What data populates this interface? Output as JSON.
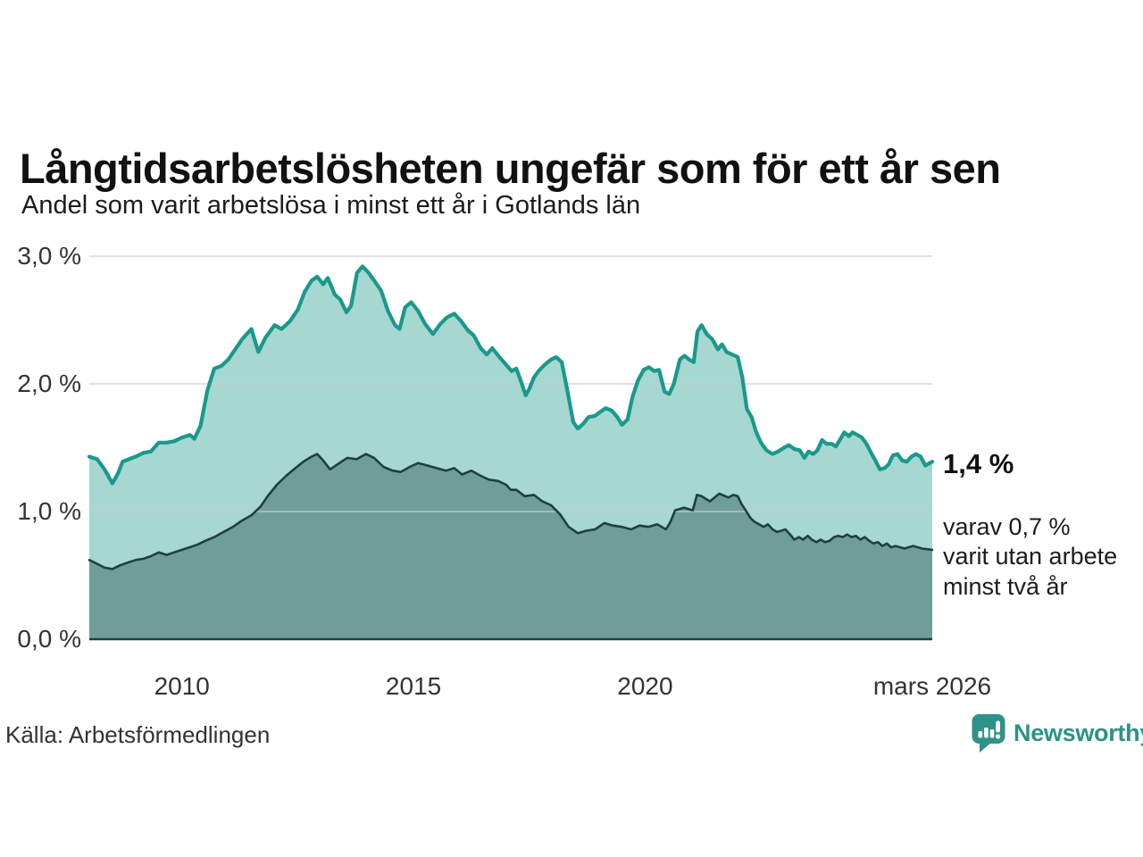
{
  "chart_data": {
    "type": "area",
    "title": "Långtidsarbetslösheten ungefär som för ett år sen",
    "subtitle": "Andel som varit arbetslösa i minst ett år i Gotlands län",
    "source": "Källa: Arbetsförmedlingen",
    "brand": "Newsworthy",
    "xlim": [
      2008.0,
      2026.2
    ],
    "ylim": [
      0,
      3.0
    ],
    "grid": true,
    "legend": "none",
    "y_ticks": [
      {
        "value": 0,
        "label": "0,0 %"
      },
      {
        "value": 1,
        "label": "1,0 %"
      },
      {
        "value": 2,
        "label": "2,0 %"
      },
      {
        "value": 3,
        "label": "3,0 %"
      }
    ],
    "x_ticks": [
      {
        "x": 2010,
        "label": "2010"
      },
      {
        "x": 2015,
        "label": "2015"
      },
      {
        "x": 2020,
        "label": "2020"
      },
      {
        "x": 2026.2,
        "label": "mars 2026"
      }
    ],
    "colors": {
      "line_1yr": "#19998c",
      "fill_1yr": "#a6d7d0",
      "line_2yr": "#1e403d",
      "fill_2yr": "#6f9e99",
      "grid": "#cccccc",
      "axis": "#1e403d",
      "tick_text": "#333333",
      "brand_teal": "#2f9289"
    },
    "annotations": {
      "latest_value": "1,4 %",
      "detail": "varav 0,7 %\nvarit utan arbete\nminst två år"
    },
    "series": [
      {
        "name": "Andel arbetslösa minst ett år",
        "points": [
          [
            2008.0,
            1.43
          ],
          [
            2008.17,
            1.41
          ],
          [
            2008.33,
            1.33
          ],
          [
            2008.5,
            1.22
          ],
          [
            2008.62,
            1.3
          ],
          [
            2008.72,
            1.39
          ],
          [
            2008.85,
            1.41
          ],
          [
            2009.0,
            1.43
          ],
          [
            2009.17,
            1.46
          ],
          [
            2009.33,
            1.47
          ],
          [
            2009.5,
            1.54
          ],
          [
            2009.67,
            1.54
          ],
          [
            2009.83,
            1.55
          ],
          [
            2010.0,
            1.58
          ],
          [
            2010.17,
            1.6
          ],
          [
            2010.27,
            1.57
          ],
          [
            2010.4,
            1.67
          ],
          [
            2010.55,
            1.95
          ],
          [
            2010.7,
            2.12
          ],
          [
            2010.85,
            2.14
          ],
          [
            2011.0,
            2.19
          ],
          [
            2011.15,
            2.27
          ],
          [
            2011.3,
            2.35
          ],
          [
            2011.5,
            2.43
          ],
          [
            2011.65,
            2.25
          ],
          [
            2011.8,
            2.36
          ],
          [
            2012.0,
            2.46
          ],
          [
            2012.15,
            2.43
          ],
          [
            2012.33,
            2.49
          ],
          [
            2012.5,
            2.58
          ],
          [
            2012.65,
            2.72
          ],
          [
            2012.8,
            2.81
          ],
          [
            2012.92,
            2.84
          ],
          [
            2013.05,
            2.78
          ],
          [
            2013.15,
            2.83
          ],
          [
            2013.3,
            2.7
          ],
          [
            2013.42,
            2.66
          ],
          [
            2013.55,
            2.56
          ],
          [
            2013.65,
            2.61
          ],
          [
            2013.78,
            2.87
          ],
          [
            2013.9,
            2.92
          ],
          [
            2014.03,
            2.87
          ],
          [
            2014.15,
            2.81
          ],
          [
            2014.3,
            2.73
          ],
          [
            2014.45,
            2.57
          ],
          [
            2014.6,
            2.46
          ],
          [
            2014.7,
            2.43
          ],
          [
            2014.82,
            2.6
          ],
          [
            2014.95,
            2.64
          ],
          [
            2015.1,
            2.57
          ],
          [
            2015.25,
            2.47
          ],
          [
            2015.42,
            2.39
          ],
          [
            2015.58,
            2.47
          ],
          [
            2015.72,
            2.52
          ],
          [
            2015.88,
            2.55
          ],
          [
            2016.03,
            2.49
          ],
          [
            2016.17,
            2.42
          ],
          [
            2016.3,
            2.38
          ],
          [
            2016.45,
            2.28
          ],
          [
            2016.58,
            2.23
          ],
          [
            2016.7,
            2.28
          ],
          [
            2016.83,
            2.22
          ],
          [
            2017.0,
            2.15
          ],
          [
            2017.12,
            2.1
          ],
          [
            2017.22,
            2.12
          ],
          [
            2017.32,
            2.02
          ],
          [
            2017.42,
            1.91
          ],
          [
            2017.5,
            1.96
          ],
          [
            2017.6,
            2.05
          ],
          [
            2017.7,
            2.1
          ],
          [
            2017.83,
            2.15
          ],
          [
            2017.97,
            2.19
          ],
          [
            2018.08,
            2.21
          ],
          [
            2018.2,
            2.17
          ],
          [
            2018.32,
            1.95
          ],
          [
            2018.45,
            1.7
          ],
          [
            2018.55,
            1.65
          ],
          [
            2018.67,
            1.69
          ],
          [
            2018.78,
            1.74
          ],
          [
            2018.92,
            1.75
          ],
          [
            2019.03,
            1.78
          ],
          [
            2019.15,
            1.81
          ],
          [
            2019.28,
            1.79
          ],
          [
            2019.4,
            1.74
          ],
          [
            2019.5,
            1.68
          ],
          [
            2019.62,
            1.72
          ],
          [
            2019.73,
            1.9
          ],
          [
            2019.85,
            2.03
          ],
          [
            2019.97,
            2.11
          ],
          [
            2020.08,
            2.13
          ],
          [
            2020.2,
            2.1
          ],
          [
            2020.3,
            2.11
          ],
          [
            2020.42,
            1.94
          ],
          [
            2020.52,
            1.92
          ],
          [
            2020.62,
            2.0
          ],
          [
            2020.75,
            2.19
          ],
          [
            2020.85,
            2.22
          ],
          [
            2020.95,
            2.19
          ],
          [
            2021.05,
            2.17
          ],
          [
            2021.13,
            2.41
          ],
          [
            2021.22,
            2.46
          ],
          [
            2021.33,
            2.39
          ],
          [
            2021.45,
            2.35
          ],
          [
            2021.57,
            2.27
          ],
          [
            2021.66,
            2.31
          ],
          [
            2021.76,
            2.25
          ],
          [
            2021.88,
            2.23
          ],
          [
            2022.0,
            2.21
          ],
          [
            2022.1,
            2.05
          ],
          [
            2022.2,
            1.8
          ],
          [
            2022.3,
            1.74
          ],
          [
            2022.4,
            1.62
          ],
          [
            2022.5,
            1.54
          ],
          [
            2022.62,
            1.48
          ],
          [
            2022.75,
            1.45
          ],
          [
            2022.87,
            1.47
          ],
          [
            2023.0,
            1.5
          ],
          [
            2023.1,
            1.52
          ],
          [
            2023.22,
            1.49
          ],
          [
            2023.34,
            1.48
          ],
          [
            2023.44,
            1.42
          ],
          [
            2023.53,
            1.47
          ],
          [
            2023.63,
            1.45
          ],
          [
            2023.72,
            1.48
          ],
          [
            2023.82,
            1.56
          ],
          [
            2023.92,
            1.53
          ],
          [
            2024.03,
            1.53
          ],
          [
            2024.12,
            1.51
          ],
          [
            2024.22,
            1.57
          ],
          [
            2024.3,
            1.62
          ],
          [
            2024.4,
            1.59
          ],
          [
            2024.48,
            1.62
          ],
          [
            2024.58,
            1.6
          ],
          [
            2024.68,
            1.58
          ],
          [
            2024.78,
            1.53
          ],
          [
            2024.88,
            1.46
          ],
          [
            2024.97,
            1.4
          ],
          [
            2025.07,
            1.33
          ],
          [
            2025.17,
            1.34
          ],
          [
            2025.26,
            1.37
          ],
          [
            2025.35,
            1.44
          ],
          [
            2025.45,
            1.45
          ],
          [
            2025.55,
            1.4
          ],
          [
            2025.65,
            1.39
          ],
          [
            2025.75,
            1.43
          ],
          [
            2025.85,
            1.45
          ],
          [
            2025.95,
            1.43
          ],
          [
            2026.05,
            1.36
          ],
          [
            2026.2,
            1.39
          ]
        ]
      },
      {
        "name": "varav utan arbete minst två år",
        "points": [
          [
            2008.0,
            0.62
          ],
          [
            2008.17,
            0.59
          ],
          [
            2008.33,
            0.56
          ],
          [
            2008.5,
            0.55
          ],
          [
            2008.67,
            0.58
          ],
          [
            2008.83,
            0.6
          ],
          [
            2009.0,
            0.62
          ],
          [
            2009.17,
            0.63
          ],
          [
            2009.33,
            0.65
          ],
          [
            2009.5,
            0.68
          ],
          [
            2009.67,
            0.66
          ],
          [
            2009.83,
            0.68
          ],
          [
            2010.0,
            0.7
          ],
          [
            2010.17,
            0.72
          ],
          [
            2010.33,
            0.74
          ],
          [
            2010.5,
            0.77
          ],
          [
            2010.7,
            0.8
          ],
          [
            2010.9,
            0.84
          ],
          [
            2011.1,
            0.88
          ],
          [
            2011.3,
            0.93
          ],
          [
            2011.5,
            0.97
          ],
          [
            2011.7,
            1.04
          ],
          [
            2011.85,
            1.12
          ],
          [
            2012.05,
            1.21
          ],
          [
            2012.25,
            1.28
          ],
          [
            2012.45,
            1.34
          ],
          [
            2012.62,
            1.39
          ],
          [
            2012.8,
            1.43
          ],
          [
            2012.92,
            1.45
          ],
          [
            2013.05,
            1.4
          ],
          [
            2013.2,
            1.33
          ],
          [
            2013.4,
            1.38
          ],
          [
            2013.57,
            1.42
          ],
          [
            2013.77,
            1.41
          ],
          [
            2013.97,
            1.45
          ],
          [
            2014.15,
            1.42
          ],
          [
            2014.35,
            1.35
          ],
          [
            2014.55,
            1.32
          ],
          [
            2014.72,
            1.31
          ],
          [
            2014.92,
            1.35
          ],
          [
            2015.1,
            1.38
          ],
          [
            2015.3,
            1.36
          ],
          [
            2015.5,
            1.34
          ],
          [
            2015.7,
            1.32
          ],
          [
            2015.88,
            1.34
          ],
          [
            2016.05,
            1.29
          ],
          [
            2016.25,
            1.32
          ],
          [
            2016.45,
            1.28
          ],
          [
            2016.63,
            1.25
          ],
          [
            2016.82,
            1.24
          ],
          [
            2017.0,
            1.21
          ],
          [
            2017.1,
            1.17
          ],
          [
            2017.22,
            1.17
          ],
          [
            2017.4,
            1.12
          ],
          [
            2017.6,
            1.13
          ],
          [
            2017.78,
            1.08
          ],
          [
            2017.97,
            1.05
          ],
          [
            2018.16,
            0.98
          ],
          [
            2018.35,
            0.88
          ],
          [
            2018.55,
            0.83
          ],
          [
            2018.73,
            0.85
          ],
          [
            2018.92,
            0.86
          ],
          [
            2019.12,
            0.91
          ],
          [
            2019.3,
            0.89
          ],
          [
            2019.5,
            0.88
          ],
          [
            2019.7,
            0.86
          ],
          [
            2019.88,
            0.89
          ],
          [
            2020.07,
            0.88
          ],
          [
            2020.26,
            0.9
          ],
          [
            2020.45,
            0.86
          ],
          [
            2020.55,
            0.92
          ],
          [
            2020.65,
            1.01
          ],
          [
            2020.84,
            1.03
          ],
          [
            2021.03,
            1.01
          ],
          [
            2021.12,
            1.13
          ],
          [
            2021.22,
            1.12
          ],
          [
            2021.4,
            1.08
          ],
          [
            2021.6,
            1.14
          ],
          [
            2021.8,
            1.11
          ],
          [
            2021.9,
            1.13
          ],
          [
            2022.0,
            1.12
          ],
          [
            2022.08,
            1.06
          ],
          [
            2022.17,
            1.01
          ],
          [
            2022.27,
            0.95
          ],
          [
            2022.36,
            0.92
          ],
          [
            2022.46,
            0.9
          ],
          [
            2022.56,
            0.88
          ],
          [
            2022.65,
            0.9
          ],
          [
            2022.75,
            0.86
          ],
          [
            2022.85,
            0.84
          ],
          [
            2022.94,
            0.85
          ],
          [
            2023.03,
            0.86
          ],
          [
            2023.13,
            0.82
          ],
          [
            2023.22,
            0.78
          ],
          [
            2023.32,
            0.8
          ],
          [
            2023.41,
            0.78
          ],
          [
            2023.51,
            0.81
          ],
          [
            2023.6,
            0.78
          ],
          [
            2023.7,
            0.76
          ],
          [
            2023.79,
            0.78
          ],
          [
            2023.89,
            0.76
          ],
          [
            2023.98,
            0.77
          ],
          [
            2024.08,
            0.8
          ],
          [
            2024.17,
            0.81
          ],
          [
            2024.27,
            0.8
          ],
          [
            2024.36,
            0.82
          ],
          [
            2024.46,
            0.8
          ],
          [
            2024.55,
            0.81
          ],
          [
            2024.65,
            0.78
          ],
          [
            2024.74,
            0.8
          ],
          [
            2024.84,
            0.77
          ],
          [
            2024.93,
            0.75
          ],
          [
            2025.03,
            0.76
          ],
          [
            2025.12,
            0.73
          ],
          [
            2025.22,
            0.75
          ],
          [
            2025.31,
            0.72
          ],
          [
            2025.41,
            0.73
          ],
          [
            2025.5,
            0.72
          ],
          [
            2025.6,
            0.71
          ],
          [
            2025.69,
            0.72
          ],
          [
            2025.79,
            0.73
          ],
          [
            2025.88,
            0.72
          ],
          [
            2025.98,
            0.71
          ],
          [
            2026.2,
            0.7
          ]
        ]
      }
    ]
  }
}
